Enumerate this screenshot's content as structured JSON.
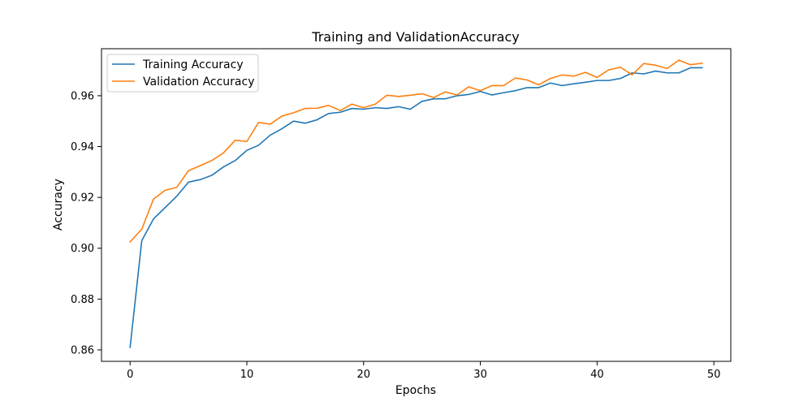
{
  "chart_data": {
    "type": "line",
    "title": "Training and ValidationAccuracy",
    "xlabel": "Epochs",
    "ylabel": "Accuracy",
    "xlim": [
      -2.45,
      51.45
    ],
    "ylim": [
      0.8555,
      0.9785
    ],
    "xticks": [
      0,
      10,
      20,
      30,
      40,
      50
    ],
    "yticks": [
      0.86,
      0.88,
      0.9,
      0.92,
      0.94,
      0.96
    ],
    "ytick_labels": [
      "0.86",
      "0.88",
      "0.90",
      "0.92",
      "0.94",
      "0.96"
    ],
    "legend_position": "upper-left",
    "x": [
      0,
      1,
      2,
      3,
      4,
      5,
      6,
      7,
      8,
      9,
      10,
      11,
      12,
      13,
      14,
      15,
      16,
      17,
      18,
      19,
      20,
      21,
      22,
      23,
      24,
      25,
      26,
      27,
      28,
      29,
      30,
      31,
      32,
      33,
      34,
      35,
      36,
      37,
      38,
      39,
      40,
      41,
      42,
      43,
      44,
      45,
      46,
      47,
      48,
      49
    ],
    "series": [
      {
        "name": "Training Accuracy",
        "color": "#1f77b4",
        "values": [
          0.861,
          0.903,
          0.9115,
          0.916,
          0.9205,
          0.926,
          0.927,
          0.9287,
          0.932,
          0.9345,
          0.9385,
          0.9405,
          0.9445,
          0.947,
          0.95,
          0.9492,
          0.9505,
          0.953,
          0.9535,
          0.955,
          0.9547,
          0.9553,
          0.955,
          0.9557,
          0.9547,
          0.9578,
          0.9588,
          0.9588,
          0.96,
          0.9605,
          0.9617,
          0.9603,
          0.9612,
          0.962,
          0.9632,
          0.9632,
          0.965,
          0.964,
          0.9647,
          0.9653,
          0.966,
          0.966,
          0.9668,
          0.969,
          0.9686,
          0.9697,
          0.969,
          0.969,
          0.971,
          0.971
        ]
      },
      {
        "name": "Validation Accuracy",
        "color": "#ff7f0e",
        "values": [
          0.9025,
          0.9075,
          0.9193,
          0.9228,
          0.924,
          0.9305,
          0.9325,
          0.9345,
          0.9375,
          0.9425,
          0.942,
          0.9495,
          0.9488,
          0.952,
          0.9533,
          0.955,
          0.9551,
          0.9562,
          0.9542,
          0.9567,
          0.9553,
          0.9567,
          0.9602,
          0.9597,
          0.9602,
          0.9608,
          0.9593,
          0.9615,
          0.9603,
          0.9635,
          0.962,
          0.964,
          0.964,
          0.967,
          0.9662,
          0.9643,
          0.9668,
          0.9682,
          0.9677,
          0.9692,
          0.9672,
          0.9702,
          0.9712,
          0.9682,
          0.9727,
          0.972,
          0.9707,
          0.974,
          0.9722,
          0.9728
        ]
      }
    ]
  }
}
